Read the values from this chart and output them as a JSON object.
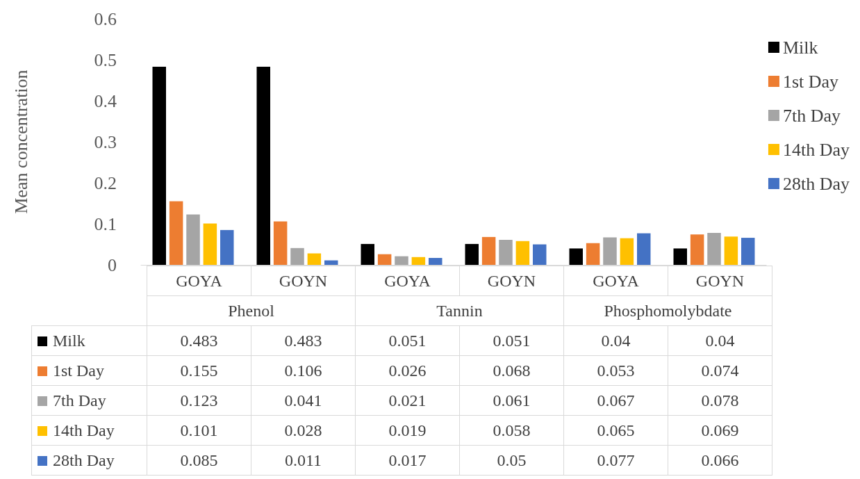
{
  "chart_data": {
    "type": "bar",
    "ylabel": "Mean concentration",
    "categories": [
      "GOYA",
      "GOYN",
      "GOYA",
      "GOYN",
      "GOYA",
      "GOYN"
    ],
    "annotations": [
      "Phenol",
      "Tannin",
      "Phosphomolybdate"
    ],
    "series": [
      {
        "name": "Milk",
        "color": "#000000",
        "values": [
          0.483,
          0.483,
          0.051,
          0.051,
          0.04,
          0.04
        ]
      },
      {
        "name": "1st Day",
        "color": "#ed7d31",
        "values": [
          0.155,
          0.106,
          0.026,
          0.068,
          0.053,
          0.074
        ]
      },
      {
        "name": "7th Day",
        "color": "#a5a5a5",
        "values": [
          0.123,
          0.041,
          0.021,
          0.061,
          0.067,
          0.078
        ]
      },
      {
        "name": "14th Day",
        "color": "#ffc000",
        "values": [
          0.101,
          0.028,
          0.019,
          0.058,
          0.065,
          0.069
        ]
      },
      {
        "name": "28th Day",
        "color": "#4472c4",
        "values": [
          0.085,
          0.011,
          0.017,
          0.05,
          0.077,
          0.066
        ]
      }
    ],
    "ylim": [
      0,
      0.6
    ],
    "yticks": [
      0,
      0.1,
      0.2,
      0.3,
      0.4,
      0.5,
      0.6
    ],
    "legend": "right",
    "data_labels": true
  }
}
